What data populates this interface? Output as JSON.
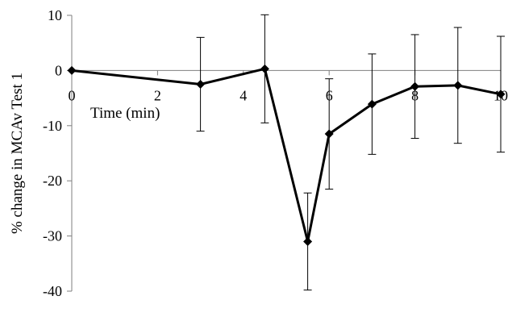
{
  "chart_data": {
    "type": "line",
    "xlabel": "Time (min)",
    "ylabel": "% change in MCAv Test 1",
    "xlim": [
      0,
      10
    ],
    "ylim": [
      -40,
      10
    ],
    "xticks": [
      0,
      2,
      4,
      6,
      8,
      10
    ],
    "yticks": [
      10,
      0,
      -10,
      -20,
      -30,
      -40
    ],
    "grid": false,
    "series": [
      {
        "marker": "diamond",
        "color": "#000000",
        "points": [
          {
            "x": 0,
            "y": 0,
            "err": 0
          },
          {
            "x": 3,
            "y": -2.5,
            "err": 8.5
          },
          {
            "x": 4.5,
            "y": 0.3,
            "err": 9.8
          },
          {
            "x": 5.5,
            "y": -31,
            "err": 8.8
          },
          {
            "x": 6,
            "y": -11.5,
            "err": 10
          },
          {
            "x": 7,
            "y": -6.1,
            "err": 9.1
          },
          {
            "x": 8,
            "y": -2.9,
            "err": 9.4
          },
          {
            "x": 9,
            "y": -2.7,
            "err": 10.5
          },
          {
            "x": 10,
            "y": -4.3,
            "err": 10.5
          }
        ]
      }
    ]
  }
}
